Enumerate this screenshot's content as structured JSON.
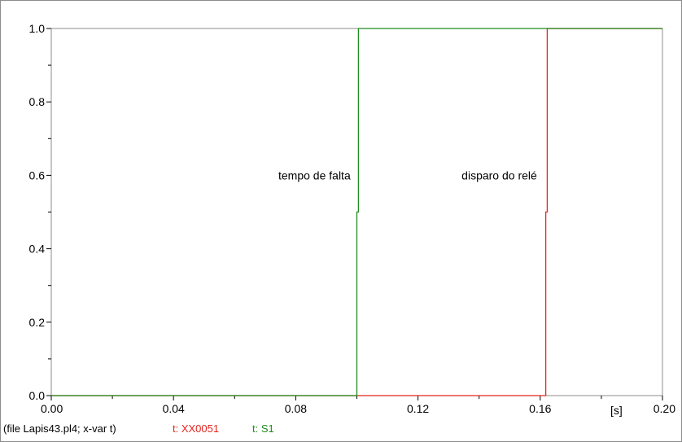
{
  "chart_data": {
    "type": "line",
    "xlim": [
      0,
      0.2
    ],
    "ylim": [
      0,
      1
    ],
    "x_ticks": [
      "0.00",
      "0.04",
      "0.08",
      "0.12",
      "0.16",
      "0.20"
    ],
    "y_ticks": [
      "0.0",
      "0.2",
      "0.4",
      "0.6",
      "0.8",
      "1.0"
    ],
    "x_unit": "[s]",
    "grid": false,
    "series": [
      {
        "name": "t: XX0051",
        "color": "#e8241f",
        "points": [
          [
            0,
            0
          ],
          [
            0.1,
            0
          ],
          [
            0.1618,
            0
          ],
          [
            0.1618,
            0.5
          ],
          [
            0.1623,
            0.5
          ],
          [
            0.1623,
            1
          ],
          [
            0.2,
            1
          ]
        ]
      },
      {
        "name": "t: S1",
        "color": "#1e8c1e",
        "points": [
          [
            0,
            0
          ],
          [
            0.1,
            0
          ],
          [
            0.1,
            0.5
          ],
          [
            0.1005,
            0.5
          ],
          [
            0.1005,
            1
          ],
          [
            0.2,
            1
          ]
        ]
      }
    ],
    "annotations": [
      {
        "text": "tempo de falta",
        "x": 0.099,
        "y": 0.6
      },
      {
        "text": "disparo do relé",
        "x": 0.16,
        "y": 0.6
      }
    ]
  },
  "footer": {
    "file_info": "(file Lapis43.pl4; x-var t)",
    "legend": [
      {
        "label": "t: XX0051",
        "color": "#e8241f"
      },
      {
        "label": "t: S1",
        "color": "#1e8c1e"
      }
    ]
  }
}
